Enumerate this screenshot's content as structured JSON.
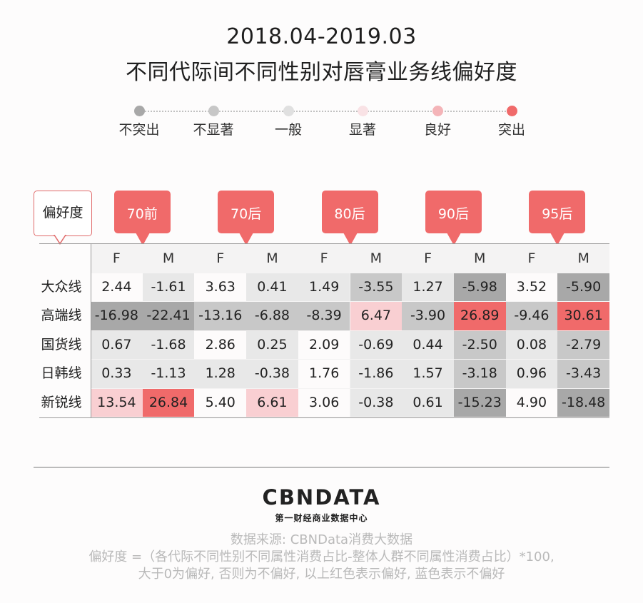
{
  "title": {
    "line1": "2018.04-2019.03",
    "line2": "不同代际间不同性别对唇膏业务线偏好度"
  },
  "scale": {
    "items": [
      {
        "label": "不突出",
        "color": "#a8a8a8"
      },
      {
        "label": "不显著",
        "color": "#c7c7c7"
      },
      {
        "label": "一般",
        "color": "#e0e0e0"
      },
      {
        "label": "显著",
        "color": "#f9e2e5"
      },
      {
        "label": "良好",
        "color": "#f4b4b8"
      },
      {
        "label": "突出",
        "color": "#f06a6a"
      }
    ]
  },
  "corner_label": "偏好度",
  "generations": [
    "70前",
    "70后",
    "80后",
    "90后",
    "95后"
  ],
  "chart_data": {
    "type": "table",
    "title": "2018.04-2019.03 不同代际间不同性别对唇膏业务线偏好度",
    "columns": [
      "F",
      "M",
      "F",
      "M",
      "F",
      "M",
      "F",
      "M",
      "F",
      "M"
    ],
    "rows": [
      {
        "label": "大众线",
        "values": [
          "2.44",
          "-1.61",
          "3.63",
          "0.41",
          "1.49",
          "-3.55",
          "1.27",
          "-5.98",
          "3.52",
          "-5.90"
        ],
        "levels": [
          3,
          2,
          3,
          2,
          2,
          1,
          2,
          0,
          3,
          0
        ]
      },
      {
        "label": "高端线",
        "values": [
          "-16.98",
          "-22.41",
          "-13.16",
          "-6.88",
          "-8.39",
          "6.47",
          "-3.90",
          "26.89",
          "-9.46",
          "30.61"
        ],
        "levels": [
          0,
          0,
          1,
          1,
          1,
          4,
          1,
          5,
          1,
          5
        ]
      },
      {
        "label": "国货线",
        "values": [
          "0.67",
          "-1.68",
          "2.86",
          "0.25",
          "2.09",
          "-0.69",
          "0.44",
          "-2.50",
          "0.08",
          "-2.79"
        ],
        "levels": [
          2,
          2,
          3,
          2,
          3,
          2,
          2,
          1,
          2,
          1
        ]
      },
      {
        "label": "日韩线",
        "values": [
          "0.33",
          "-1.13",
          "1.28",
          "-0.38",
          "1.76",
          "-1.86",
          "1.57",
          "-3.18",
          "0.96",
          "-3.43"
        ],
        "levels": [
          2,
          2,
          2,
          2,
          3,
          2,
          2,
          1,
          2,
          1
        ]
      },
      {
        "label": "新锐线",
        "values": [
          "13.54",
          "26.84",
          "5.40",
          "6.61",
          "3.06",
          "-0.38",
          "0.61",
          "-15.23",
          "4.90",
          "-18.48"
        ],
        "levels": [
          4,
          5,
          3,
          4,
          3,
          2,
          2,
          0,
          3,
          0
        ]
      }
    ]
  },
  "footer": {
    "logo": "CBNDATA",
    "logo_sub": "第一财经商业数据中心",
    "source": "数据来源: CBNData消费大数据",
    "formula": "偏好度 =（各代际不同性别不同属性消费占比-整体人群不同属性消费占比）*100,",
    "explain": "大于0为偏好, 否则为不偏好, 以上红色表示偏好, 蓝色表示不偏好"
  }
}
